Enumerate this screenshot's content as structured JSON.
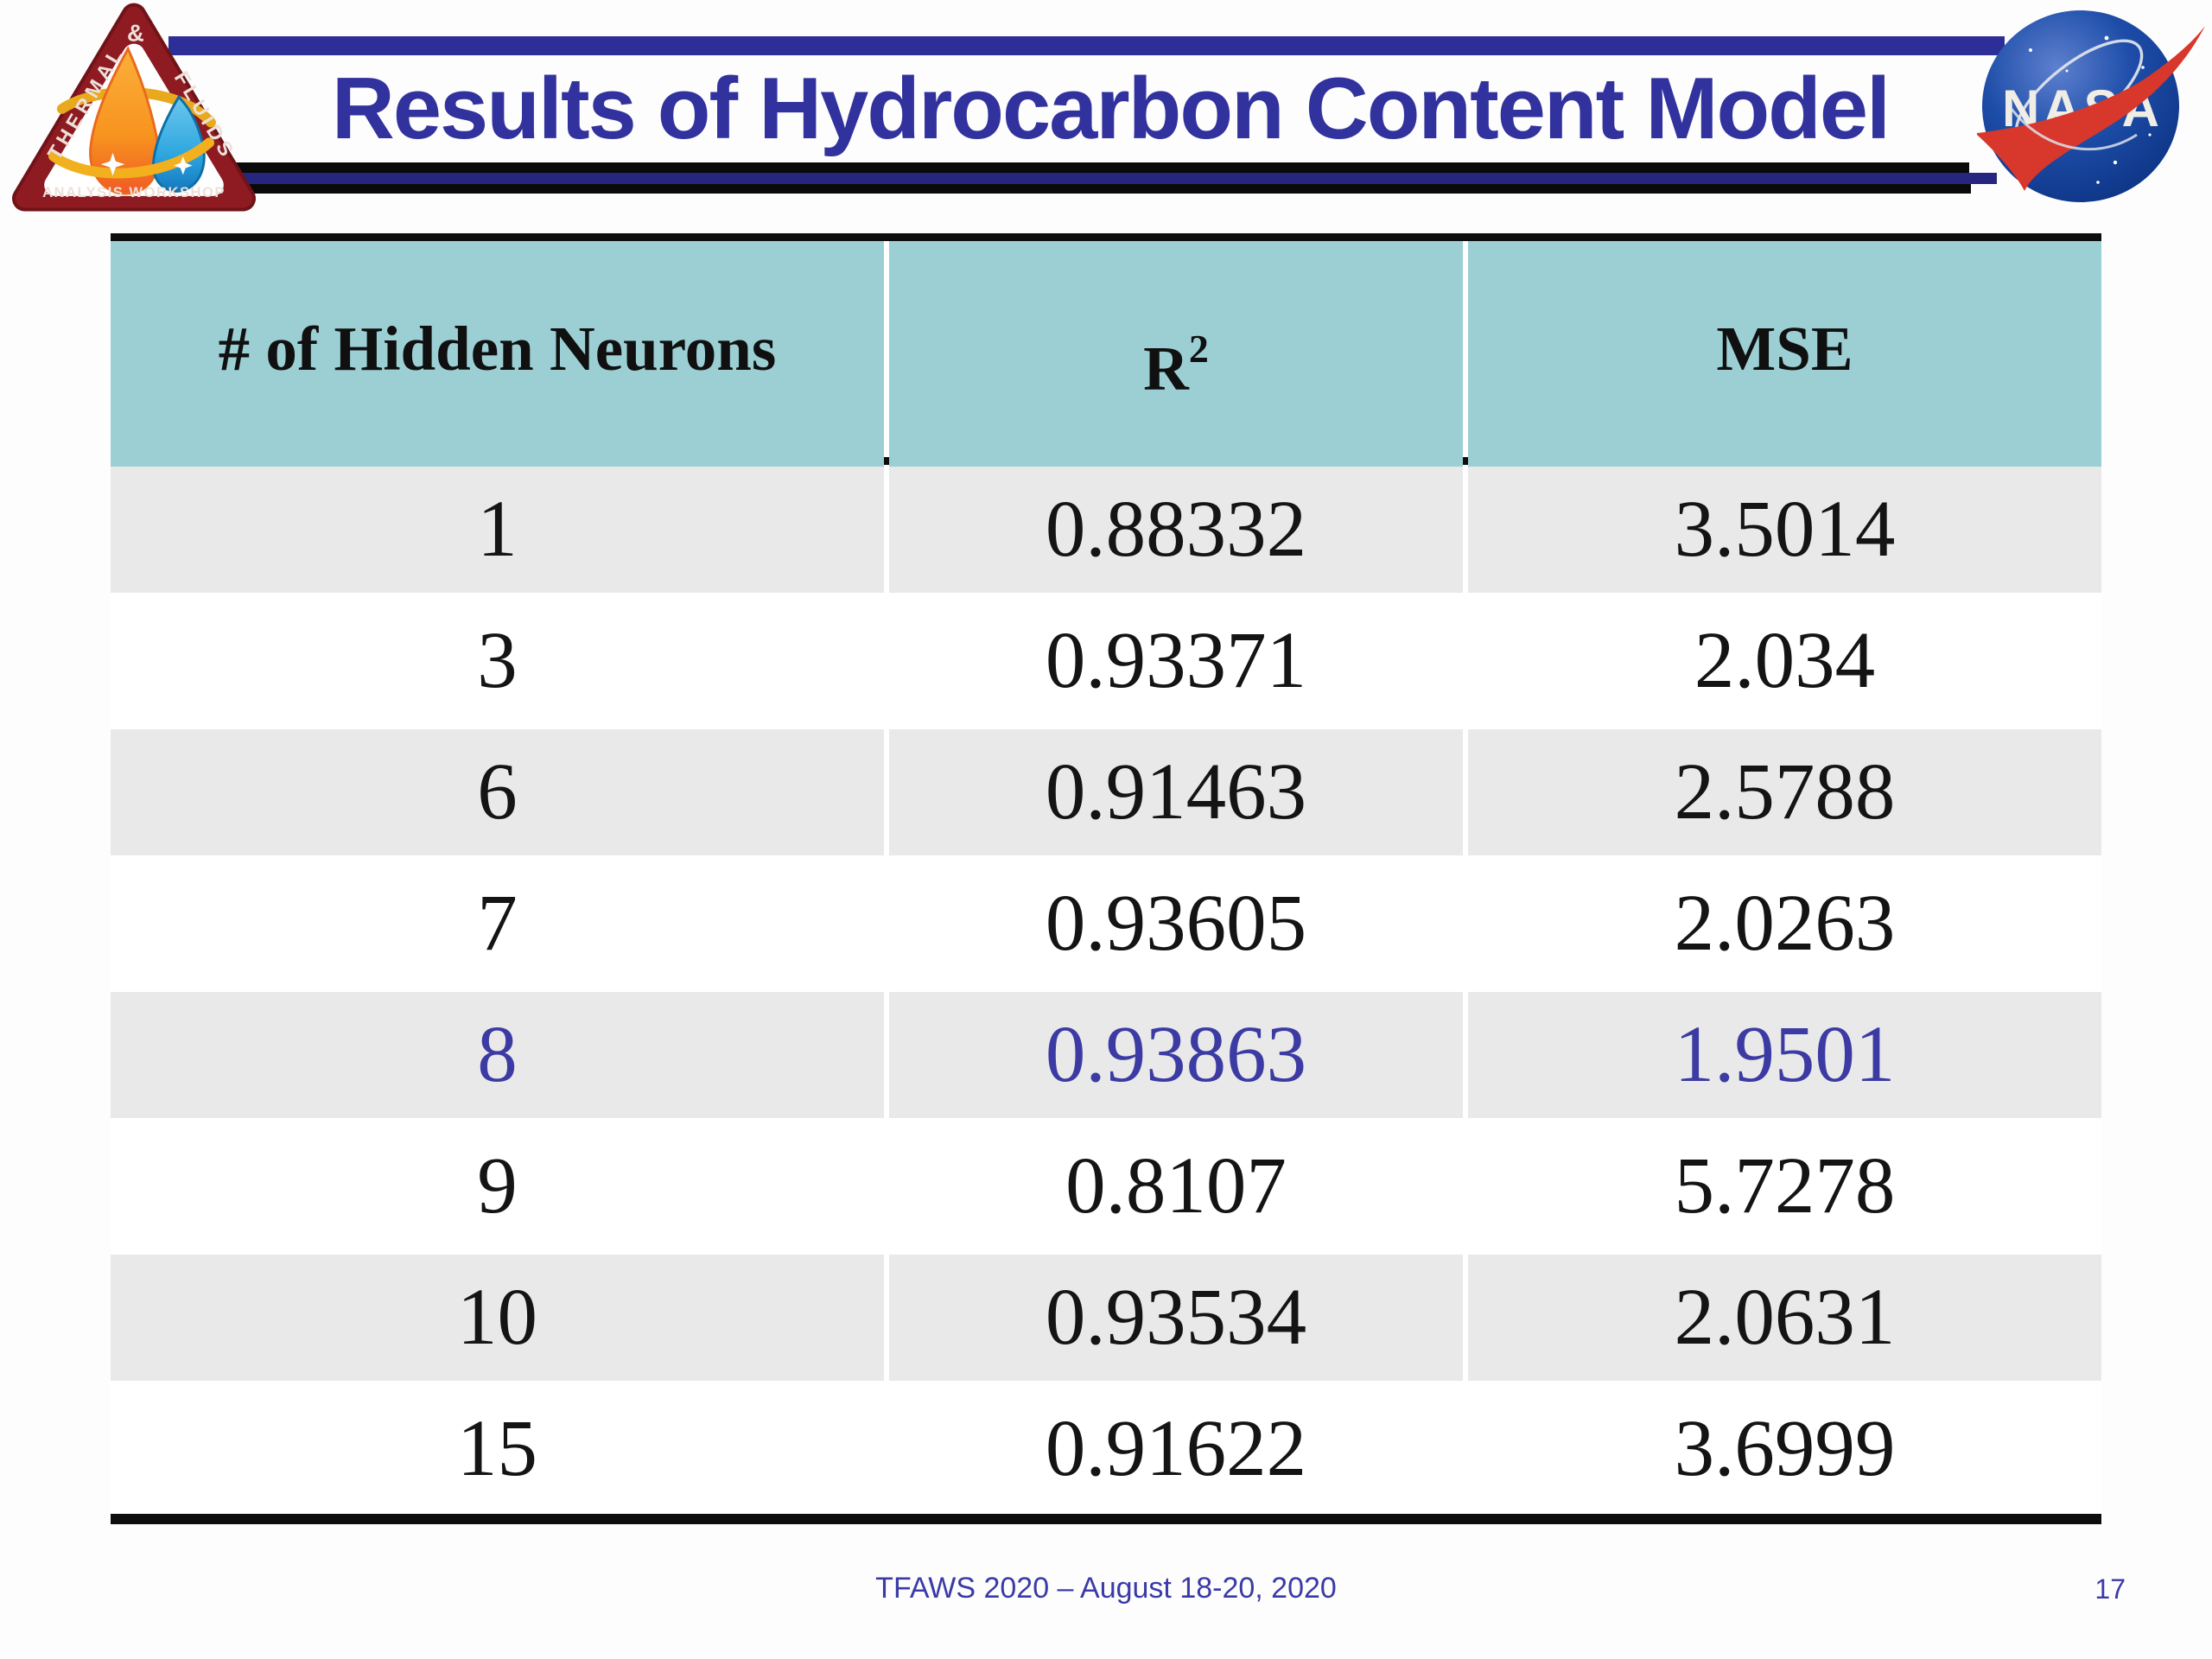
{
  "slide": {
    "title": "Results of Hydrocarbon Content Model",
    "footer_text": "TFAWS 2020 – August 18-20, 2020",
    "page_number": "17"
  },
  "logos": {
    "tfaws": {
      "top_label": "&",
      "left_label": "THERMAL",
      "right_label": "FLUIDS",
      "bottom_label": "ANALYSIS WORKSHOP"
    },
    "nasa": {
      "wordmark": "NASA"
    }
  },
  "table": {
    "headers": {
      "col1": "# of Hidden Neurons",
      "col2_base": "R",
      "col2_sup": "2",
      "col3": "MSE"
    },
    "rows": [
      {
        "neurons": "1",
        "r2": "0.88332",
        "mse": "3.5014",
        "highlight": false
      },
      {
        "neurons": "3",
        "r2": "0.93371",
        "mse": "2.034",
        "highlight": false
      },
      {
        "neurons": "6",
        "r2": "0.91463",
        "mse": "2.5788",
        "highlight": false
      },
      {
        "neurons": "7",
        "r2": "0.93605",
        "mse": "2.0263",
        "highlight": false
      },
      {
        "neurons": "8",
        "r2": "0.93863",
        "mse": "1.9501",
        "highlight": true
      },
      {
        "neurons": "9",
        "r2": "0.8107",
        "mse": "5.7278",
        "highlight": false
      },
      {
        "neurons": "10",
        "r2": "0.93534",
        "mse": "2.0631",
        "highlight": false
      },
      {
        "neurons": "15",
        "r2": "0.91622",
        "mse": "3.6999",
        "highlight": false
      }
    ]
  },
  "colors": {
    "header_teal": "#9CCFD3",
    "row_gray": "#E9E9E9",
    "highlight_blue": "#3B3BA3",
    "title_blue": "#32329E",
    "top_bar_navy": "#2E2E99",
    "underline_navy": "#26267F",
    "line_black": "#0d0d0d",
    "nasa_blue": "#0B3D91",
    "nasa_red": "#D8372C",
    "tfaws_maroon": "#8D1B21"
  }
}
